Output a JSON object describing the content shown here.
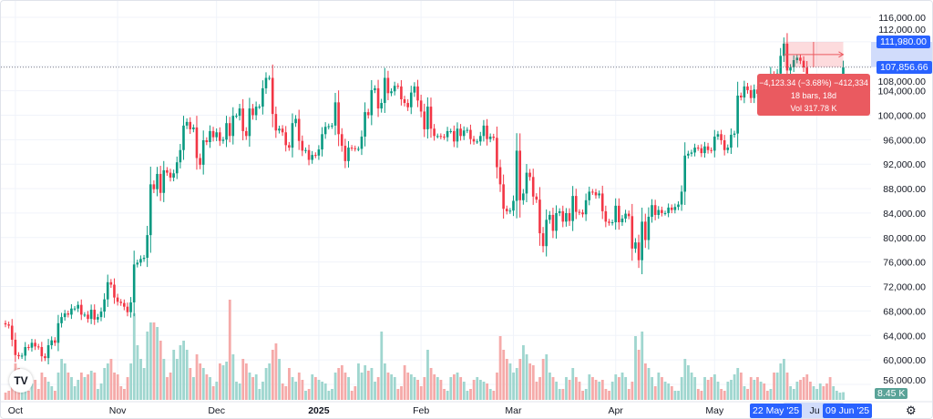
{
  "chart_data": {
    "type": "candlestick",
    "x_start": "2024-09-28",
    "y_ticks": [
      56000,
      60000,
      64000,
      68000,
      72000,
      76000,
      80000,
      84000,
      88000,
      92000,
      96000,
      100000,
      104000,
      108000,
      112000,
      116000
    ],
    "y_tick_labels": [
      "56,000.00",
      "60,000.00",
      "64,000.00",
      "68,000.00",
      "72,000.00",
      "76,000.00",
      "80,000.00",
      "84,000.00",
      "88,000.00",
      "92,000.00",
      "96,000.00",
      "100,000.00",
      "104,000.00",
      "108,000.00",
      "112,000.00",
      "116,000.00"
    ],
    "ylim": [
      55000,
      118000
    ],
    "x_ticks": [
      {
        "date": "2024-10-01",
        "label": "Oct"
      },
      {
        "date": "2024-11-01",
        "label": "Nov"
      },
      {
        "date": "2024-12-01",
        "label": "Dec"
      },
      {
        "date": "2025-01-01",
        "label": "2025"
      },
      {
        "date": "2025-02-01",
        "label": "Feb"
      },
      {
        "date": "2025-03-01",
        "label": "Mar"
      },
      {
        "date": "2025-04-01",
        "label": "Apr"
      },
      {
        "date": "2025-05-01",
        "label": "May"
      },
      {
        "date": "2025-06-01",
        "label": "Ju"
      }
    ],
    "closes": [
      65800,
      65600,
      63300,
      60800,
      60600,
      60700,
      62100,
      62000,
      62800,
      62200,
      62100,
      60600,
      60300,
      62400,
      63200,
      62800,
      66000,
      67000,
      67600,
      67400,
      68400,
      68400,
      69000,
      67400,
      67400,
      66700,
      68200,
      66600,
      67000,
      67900,
      69900,
      72700,
      72300,
      70200,
      69500,
      69300,
      68700,
      67800,
      69400,
      75600,
      75900,
      76500,
      76700,
      80400,
      88700,
      87900,
      90400,
      87300,
      91000,
      90600,
      89800,
      90500,
      92300,
      94300,
      98300,
      98900,
      97700,
      98000,
      93000,
      91900,
      95900,
      95600,
      97400,
      96400,
      97200,
      95800,
      96000,
      98700,
      96600,
      99900,
      99900,
      101100,
      97400,
      96600,
      101100,
      100000,
      101400,
      101400,
      104400,
      106100,
      106100,
      100200,
      97500,
      97800,
      97200,
      95100,
      94700,
      98700,
      99400,
      95800,
      94200,
      94300,
      92700,
      93500,
      93400,
      94400,
      96900,
      98100,
      98200,
      98300,
      102100,
      96900,
      95000,
      92500,
      94700,
      94600,
      94500,
      94500,
      96500,
      100500,
      100000,
      104100,
      104400,
      101100,
      102000,
      106100,
      103600,
      103900,
      104800,
      104700,
      102600,
      102000,
      101300,
      103700,
      104700,
      102400,
      100600,
      97700,
      101400,
      97800,
      96600,
      96600,
      96500,
      96400,
      97400,
      97400,
      95700,
      97800,
      96600,
      97500,
      97600,
      96100,
      95700,
      95700,
      96600,
      98300,
      96100,
      96500,
      96300,
      91500,
      88700,
      84700,
      84300,
      84400,
      86000,
      94200,
      86100,
      87200,
      90600,
      89900,
      86700,
      86200,
      80700,
      78600,
      82900,
      83700,
      81100,
      84000,
      84300,
      82600,
      84000,
      82700,
      86800,
      84200,
      84100,
      83800,
      86100,
      87500,
      87400,
      86900,
      87200,
      84300,
      82600,
      82400,
      82500,
      85200,
      82500,
      83100,
      83900,
      83500,
      78200,
      79200,
      76300,
      82600,
      79600,
      83400,
      85300,
      83700,
      84500,
      84000,
      84000,
      84900,
      84500,
      85000,
      85400,
      87500,
      93400,
      93700,
      93900,
      94700,
      94600,
      93800,
      94900,
      94300,
      94200,
      96500,
      96900,
      95900,
      94300,
      94700,
      96800,
      97000,
      103200,
      102900,
      104700,
      104100,
      102800,
      104200,
      103500,
      103800,
      103500,
      103200,
      106500,
      105600,
      106800,
      109700,
      111700,
      107300,
      107800,
      109000,
      109400,
      108900,
      107800,
      105600,
      103900,
      104600,
      105600,
      105800,
      105400,
      104700,
      101600,
      104400,
      105600,
      105700,
      107856.66
    ],
    "volumes_k": [
      8,
      10,
      25,
      40,
      35,
      20,
      14,
      10,
      18,
      22,
      12,
      30,
      25,
      20,
      15,
      10,
      30,
      45,
      40,
      30,
      25,
      15,
      22,
      30,
      25,
      28,
      32,
      30,
      12,
      18,
      35,
      40,
      45,
      30,
      28,
      15,
      12,
      25,
      40,
      95,
      60,
      45,
      35,
      75,
      85,
      85,
      80,
      65,
      45,
      25,
      30,
      55,
      45,
      60,
      65,
      55,
      35,
      25,
      50,
      40,
      35,
      28,
      25,
      15,
      20,
      40,
      38,
      42,
      110,
      50,
      20,
      18,
      45,
      40,
      30,
      25,
      28,
      12,
      20,
      35,
      40,
      55,
      62,
      45,
      18,
      15,
      35,
      25,
      20,
      30,
      22,
      10,
      12,
      28,
      25,
      22,
      20,
      18,
      10,
      12,
      30,
      35,
      38,
      30,
      25,
      10,
      15,
      40,
      30,
      38,
      32,
      35,
      20,
      25,
      75,
      40,
      30,
      28,
      25,
      12,
      15,
      38,
      30,
      28,
      25,
      22,
      15,
      25,
      55,
      35,
      28,
      25,
      22,
      12,
      10,
      25,
      28,
      30,
      25,
      20,
      10,
      12,
      22,
      25,
      22,
      20,
      18,
      12,
      10,
      30,
      70,
      55,
      45,
      40,
      30,
      35,
      45,
      60,
      50,
      40,
      38,
      20,
      25,
      45,
      50,
      30,
      25,
      20,
      12,
      12,
      25,
      22,
      35,
      25,
      20,
      10,
      12,
      28,
      25,
      22,
      20,
      22,
      12,
      10,
      20,
      28,
      25,
      30,
      25,
      12,
      20,
      70,
      55,
      75,
      40,
      35,
      25,
      15,
      30,
      25,
      20,
      18,
      15,
      10,
      10,
      25,
      45,
      38,
      30,
      25,
      12,
      10,
      25,
      22,
      25,
      28,
      20,
      12,
      10,
      20,
      22,
      28,
      35,
      30,
      15,
      12,
      25,
      22,
      25,
      20,
      18,
      10,
      12,
      30,
      30,
      40,
      45,
      30,
      15,
      12,
      20,
      22,
      25,
      28,
      20,
      15,
      12,
      18,
      15,
      18,
      25,
      15,
      10,
      8,
      8.45
    ],
    "last_price": 107856.66,
    "last_price_label": "107,856.66",
    "measure_top_label": "111,980.00",
    "measure_top_price": 111980,
    "last_volume_label": "8.45 K",
    "measure_range": {
      "from_label": "22 May '25",
      "to_label": "09 Jun '25"
    },
    "colors": {
      "up": "#089981",
      "down": "#f23645",
      "vol_up": "#9fd6cf",
      "vol_down": "#f5aaa9",
      "accent": "#2962ff",
      "tooltip": "#ea5a60",
      "volume_badge": "#5aa398"
    }
  },
  "tooltip": {
    "line1": "−4,123.34 (−3.68%) −412,334",
    "line2": "18 bars, 18d",
    "line3": "Vol 317.78 K"
  },
  "logo": "TV",
  "icons": {
    "settings": "gear-icon",
    "logo": "tradingview-logo"
  }
}
